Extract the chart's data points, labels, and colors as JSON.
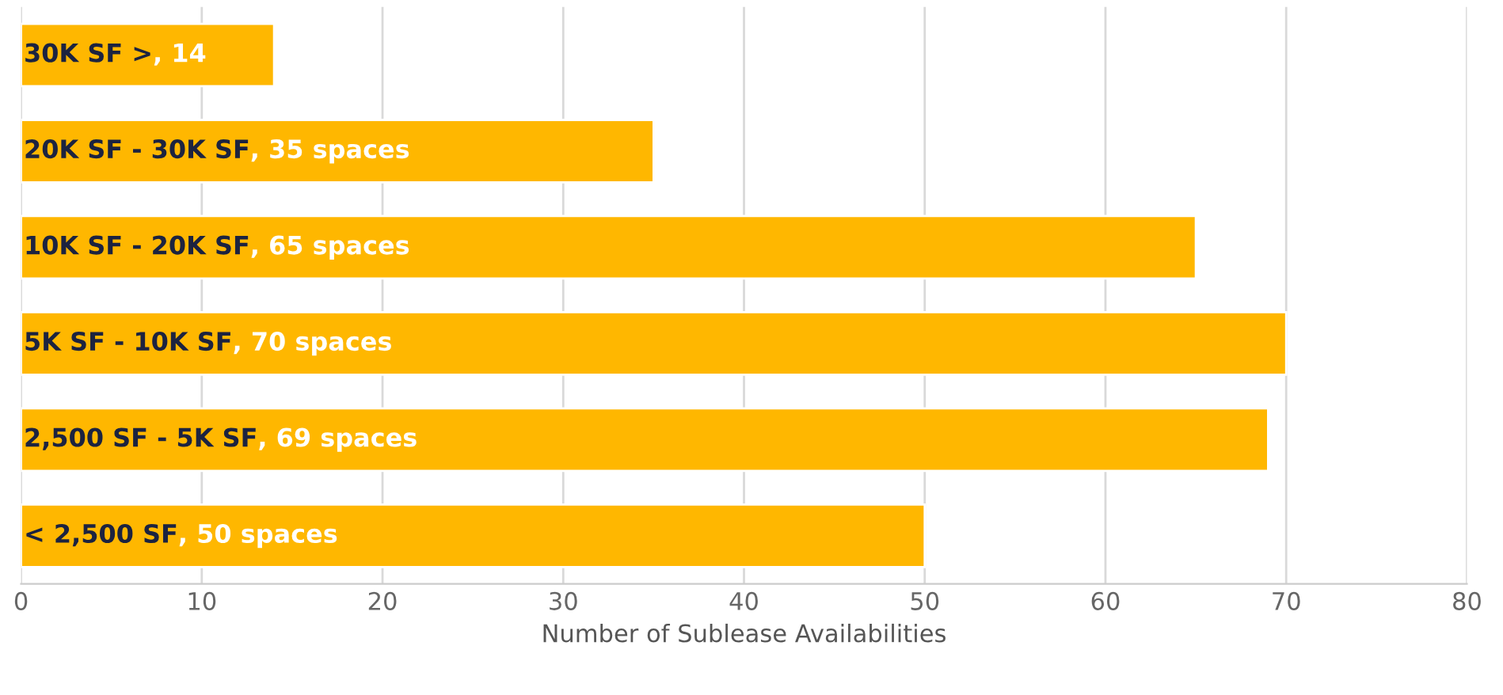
{
  "chart_data": {
    "type": "bar",
    "orientation": "horizontal",
    "categories": [
      "30K SF >",
      "20K SF - 30K SF",
      "10K SF - 20K SF",
      "5K SF - 10K SF",
      "2,500 SF - 5K SF",
      "< 2,500 SF"
    ],
    "values": [
      14,
      35,
      65,
      70,
      69,
      50
    ],
    "value_labels": [
      ", 14",
      ", 35 spaces",
      ", 65 spaces",
      ", 70 spaces",
      ", 69 spaces",
      ", 50 spaces"
    ],
    "color": "#ffb700",
    "xlim": [
      0,
      80
    ],
    "xticks": [
      0,
      10,
      20,
      30,
      40,
      50,
      60,
      70,
      80
    ],
    "grid": "x",
    "xlabel": "Number of Sublease Availabilities"
  }
}
